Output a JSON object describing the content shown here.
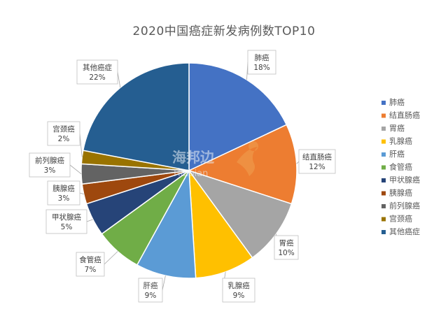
{
  "chart_data": {
    "type": "pie",
    "title": "2020中国癌症新发病例数TOP10",
    "categories": [
      "肺癌",
      "结直肠癌",
      "胃癌",
      "乳腺癌",
      "肝癌",
      "食管癌",
      "甲状腺癌",
      "胰腺癌",
      "前列腺癌",
      "宫颈癌",
      "其他癌症"
    ],
    "values": [
      18,
      12,
      10,
      9,
      9,
      7,
      5,
      3,
      3,
      2,
      22
    ],
    "value_labels": [
      "18%",
      "12%",
      "10%",
      "9%",
      "9%",
      "7%",
      "5%",
      "3%",
      "3%",
      "2%",
      "22%"
    ],
    "colors": [
      "#4472C4",
      "#ED7D31",
      "#A5A5A5",
      "#FFC000",
      "#5B9BD5",
      "#70AD47",
      "#264478",
      "#9E480E",
      "#636363",
      "#997300",
      "#255E91"
    ],
    "legend_position": "right"
  },
  "watermark": {
    "text": "海邦边",
    "subtext": "Haibian",
    "color": "#f0a050"
  }
}
